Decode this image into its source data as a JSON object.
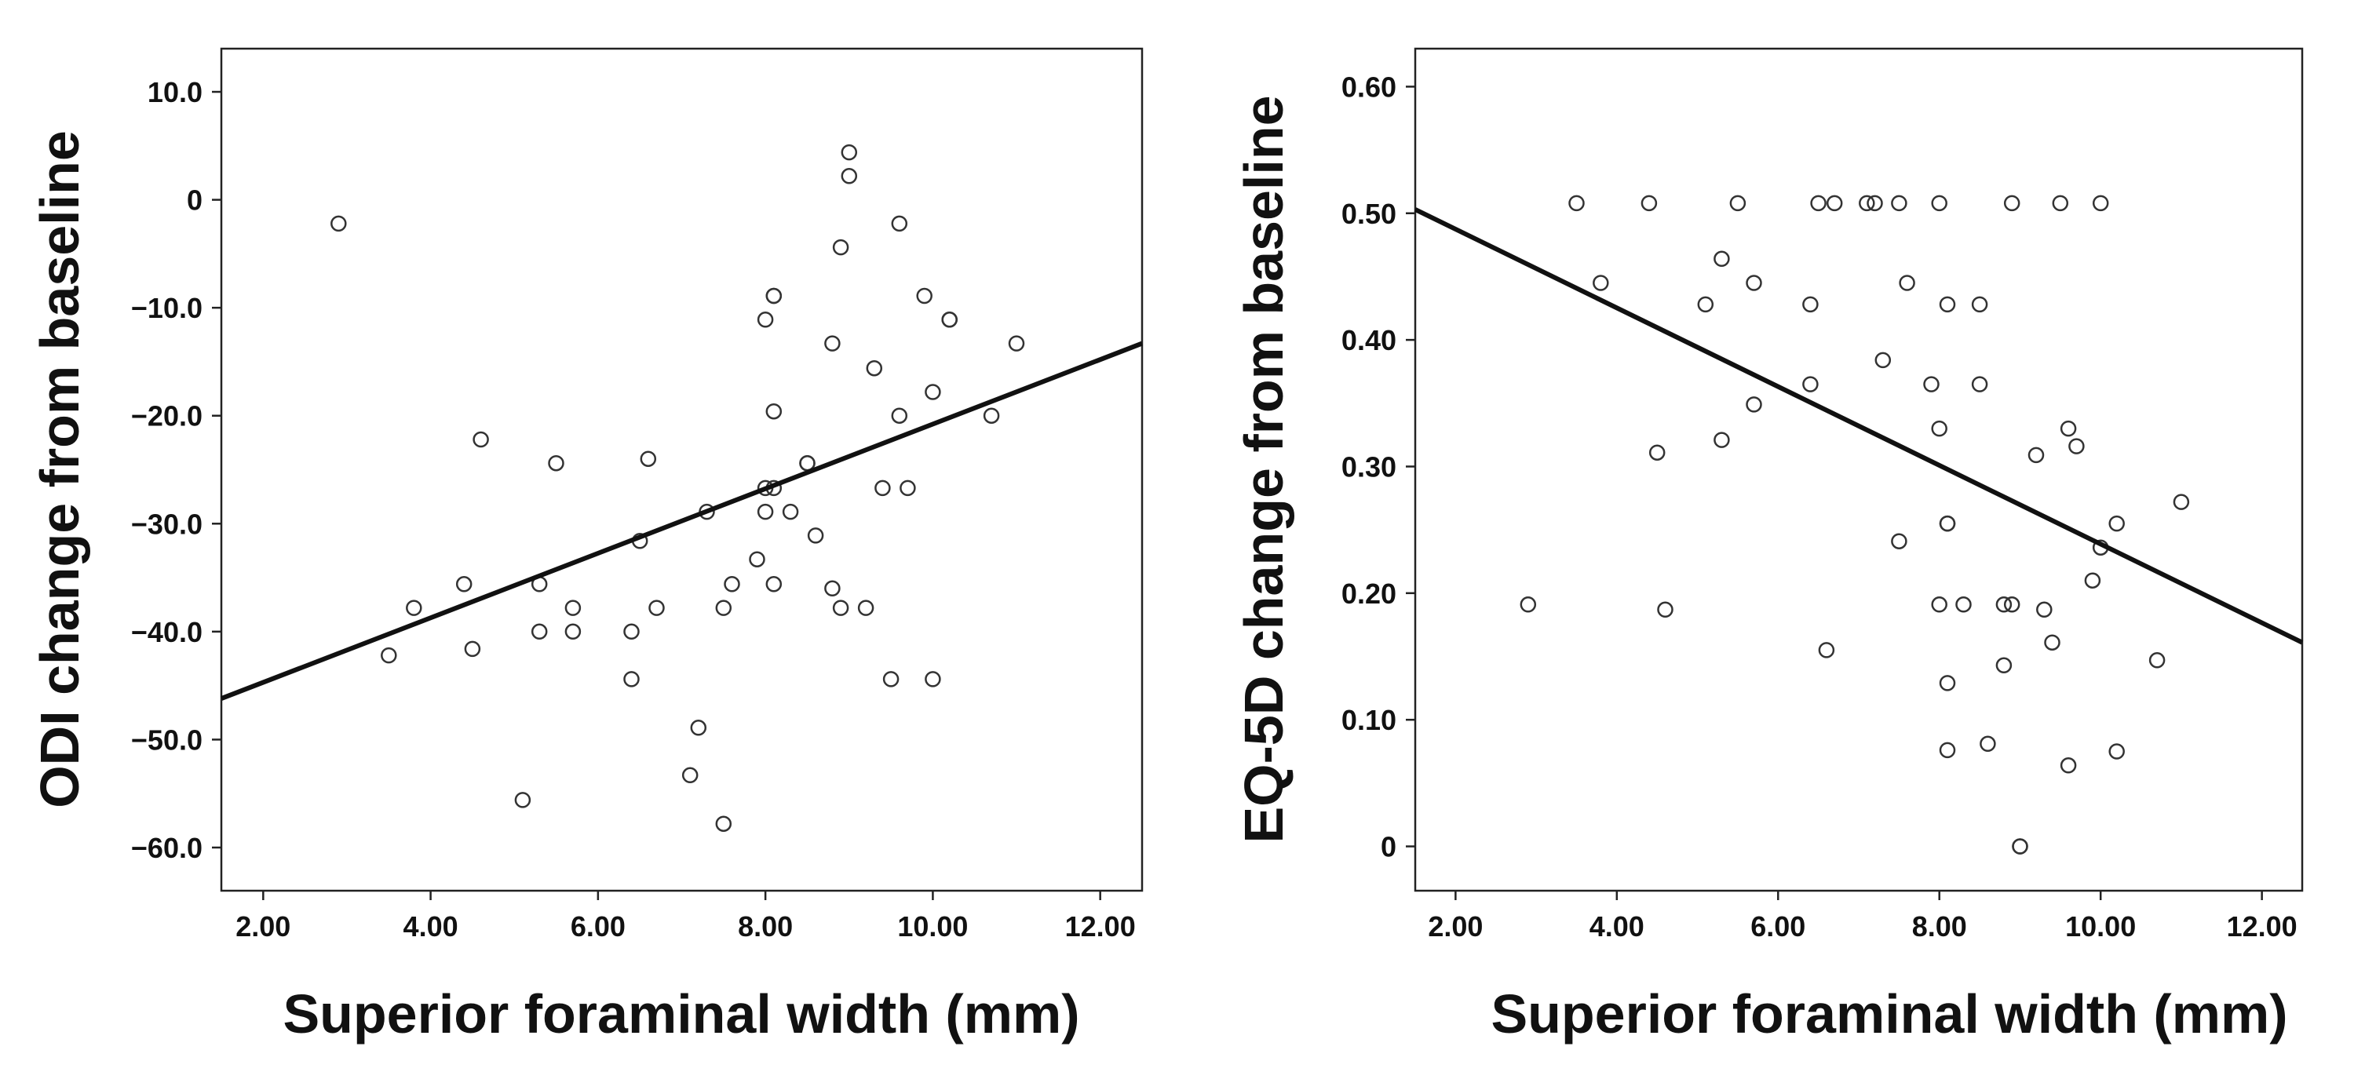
{
  "chart_data": [
    {
      "type": "scatter",
      "xlabel": "Superior foraminal width (mm)",
      "ylabel": "ODI change from baseline",
      "xlim": [
        1.5,
        12.5
      ],
      "ylim": [
        -64,
        14
      ],
      "x_ticks": [
        2,
        4,
        6,
        8,
        10,
        12
      ],
      "x_tick_labels": [
        "2.00",
        "4.00",
        "6.00",
        "8.00",
        "10.00",
        "12.00"
      ],
      "y_ticks": [
        10,
        0,
        -10,
        -20,
        -30,
        -40,
        -50,
        -60
      ],
      "y_tick_labels": [
        "10.0",
        "0",
        "−10.0",
        "−20.0",
        "−30.0",
        "−40.0",
        "−50.0",
        "−60.0"
      ],
      "points": [
        [
          2.9,
          -2.2
        ],
        [
          3.5,
          -42.2
        ],
        [
          3.8,
          -37.8
        ],
        [
          4.4,
          -35.6
        ],
        [
          4.5,
          -41.6
        ],
        [
          4.6,
          -22.2
        ],
        [
          5.1,
          -55.6
        ],
        [
          5.3,
          -35.6
        ],
        [
          5.3,
          -40.0
        ],
        [
          5.5,
          -24.4
        ],
        [
          5.7,
          -37.8
        ],
        [
          5.7,
          -40.0
        ],
        [
          6.4,
          -40.0
        ],
        [
          6.4,
          -44.4
        ],
        [
          6.5,
          -31.6
        ],
        [
          6.6,
          -24.0
        ],
        [
          6.7,
          -37.8
        ],
        [
          7.1,
          -53.3
        ],
        [
          7.2,
          -48.9
        ],
        [
          7.3,
          -28.9
        ],
        [
          7.5,
          -37.8
        ],
        [
          7.5,
          -57.8
        ],
        [
          7.6,
          -35.6
        ],
        [
          7.9,
          -33.3
        ],
        [
          8.0,
          -11.1
        ],
        [
          8.0,
          -26.7
        ],
        [
          8.0,
          -28.9
        ],
        [
          8.1,
          -8.9
        ],
        [
          8.1,
          -8.9
        ],
        [
          8.1,
          -19.6
        ],
        [
          8.1,
          -26.7
        ],
        [
          8.1,
          -35.6
        ],
        [
          8.3,
          -28.9
        ],
        [
          8.5,
          -24.4
        ],
        [
          8.5,
          -24.4
        ],
        [
          8.6,
          -31.1
        ],
        [
          8.8,
          -13.3
        ],
        [
          8.8,
          -36.0
        ],
        [
          8.9,
          -4.4
        ],
        [
          8.9,
          -37.8
        ],
        [
          9.0,
          4.4
        ],
        [
          9.0,
          2.2
        ],
        [
          9.2,
          -37.8
        ],
        [
          9.3,
          -15.6
        ],
        [
          9.4,
          -26.7
        ],
        [
          9.5,
          -44.4
        ],
        [
          9.6,
          -2.2
        ],
        [
          9.6,
          -20.0
        ],
        [
          9.7,
          -26.7
        ],
        [
          9.9,
          -8.9
        ],
        [
          10.0,
          -17.8
        ],
        [
          10.0,
          -44.4
        ],
        [
          10.2,
          -11.1
        ],
        [
          10.2,
          -11.1
        ],
        [
          10.7,
          -20.0
        ],
        [
          11.0,
          -13.3
        ]
      ],
      "fit_line": {
        "x": [
          1.5,
          12.5
        ],
        "y": [
          -46.2,
          -13.3
        ]
      }
    },
    {
      "type": "scatter",
      "xlabel": "Superior foraminal width (mm)",
      "ylabel": "EQ-5D change from baseline",
      "xlim": [
        1.5,
        12.5
      ],
      "ylim": [
        -0.035,
        0.63
      ],
      "x_ticks": [
        2,
        4,
        6,
        8,
        10,
        12
      ],
      "x_tick_labels": [
        "2.00",
        "4.00",
        "6.00",
        "8.00",
        "10.00",
        "12.00"
      ],
      "y_ticks": [
        0.6,
        0.5,
        0.4,
        0.3,
        0.2,
        0.1,
        0
      ],
      "y_tick_labels": [
        "0.60",
        "0.50",
        "0.40",
        "0.30",
        "0.20",
        "0.10",
        "0"
      ],
      "points": [
        [
          2.9,
          0.191
        ],
        [
          3.5,
          0.508
        ],
        [
          3.8,
          0.445
        ],
        [
          4.4,
          0.508
        ],
        [
          4.5,
          0.311
        ],
        [
          4.6,
          0.187
        ],
        [
          5.1,
          0.428
        ],
        [
          5.3,
          0.464
        ],
        [
          5.3,
          0.321
        ],
        [
          5.5,
          0.508
        ],
        [
          5.7,
          0.445
        ],
        [
          5.7,
          0.349
        ],
        [
          6.4,
          0.428
        ],
        [
          6.4,
          0.365
        ],
        [
          6.5,
          0.508
        ],
        [
          6.6,
          0.155
        ],
        [
          6.7,
          0.508
        ],
        [
          7.1,
          0.508
        ],
        [
          7.2,
          0.508
        ],
        [
          7.3,
          0.384
        ],
        [
          7.5,
          0.508
        ],
        [
          7.5,
          0.241
        ],
        [
          7.6,
          0.445
        ],
        [
          7.9,
          0.365
        ],
        [
          8.0,
          0.508
        ],
        [
          8.0,
          0.33
        ],
        [
          8.0,
          0.191
        ],
        [
          8.1,
          0.428
        ],
        [
          8.1,
          0.255
        ],
        [
          8.1,
          0.255
        ],
        [
          8.1,
          0.129
        ],
        [
          8.1,
          0.076
        ],
        [
          8.3,
          0.191
        ],
        [
          8.5,
          0.428
        ],
        [
          8.5,
          0.365
        ],
        [
          8.6,
          0.081
        ],
        [
          8.8,
          0.191
        ],
        [
          8.8,
          0.143
        ],
        [
          8.9,
          0.508
        ],
        [
          8.9,
          0.191
        ],
        [
          9.0,
          0.0
        ],
        [
          9.0,
          0.0
        ],
        [
          9.2,
          0.309
        ],
        [
          9.3,
          0.187
        ],
        [
          9.4,
          0.161
        ],
        [
          9.5,
          0.508
        ],
        [
          9.6,
          0.33
        ],
        [
          9.6,
          0.064
        ],
        [
          9.7,
          0.316
        ],
        [
          9.9,
          0.21
        ],
        [
          10.0,
          0.508
        ],
        [
          10.0,
          0.236
        ],
        [
          10.2,
          0.255
        ],
        [
          10.2,
          0.075
        ],
        [
          10.7,
          0.147
        ],
        [
          11.0,
          0.272
        ]
      ],
      "fit_line": {
        "x": [
          1.5,
          12.5
        ],
        "y": [
          0.503,
          0.161
        ]
      }
    }
  ]
}
